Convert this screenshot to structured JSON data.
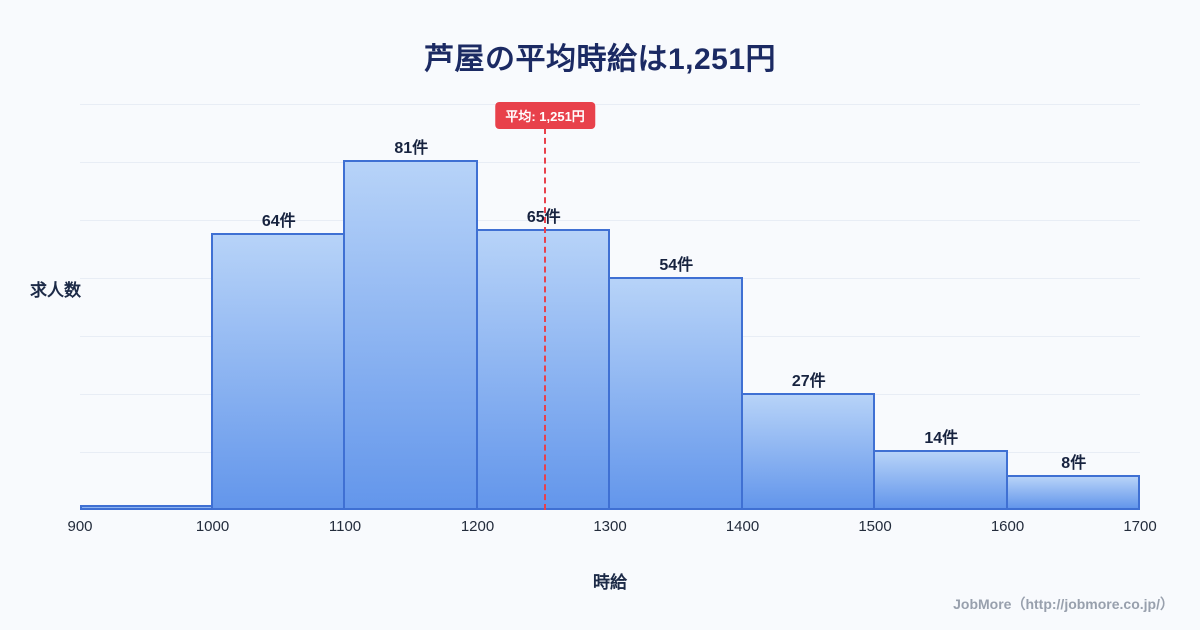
{
  "page": {
    "title": "芦屋の平均時給は1,251円",
    "footer": "JobMore（http://jobmore.co.jp/）"
  },
  "chart_data": {
    "type": "bar",
    "title": "芦屋の平均時給は1,251円",
    "xlabel": "時給",
    "ylabel": "求人数",
    "x_min": 900,
    "x_max": 1700,
    "x_ticks": [
      "900",
      "1000",
      "1100",
      "1200",
      "1300",
      "1400",
      "1500",
      "1600",
      "1700"
    ],
    "bin_edges": [
      900,
      1000,
      1100,
      1200,
      1300,
      1400,
      1500,
      1600,
      1700
    ],
    "values": [
      1,
      64,
      81,
      65,
      54,
      27,
      14,
      8
    ],
    "bar_labels": [
      "",
      "64件",
      "81件",
      "65件",
      "54件",
      "27件",
      "14件",
      "8件"
    ],
    "ylim": [
      0,
      95
    ],
    "grid": "horizontal",
    "legend": "none",
    "average": {
      "value": 1251,
      "label": "平均: 1,251円"
    },
    "colors": {
      "background": "#f8fafd",
      "title_text": "#1b2a63",
      "bar_gradient_top": "#b7d3f8",
      "bar_gradient_bottom": "#6396eb",
      "bar_border": "#3f70d3",
      "average_line": "#e8414b",
      "average_badge_bg": "#e8414b",
      "average_badge_text": "#ffffff"
    }
  }
}
